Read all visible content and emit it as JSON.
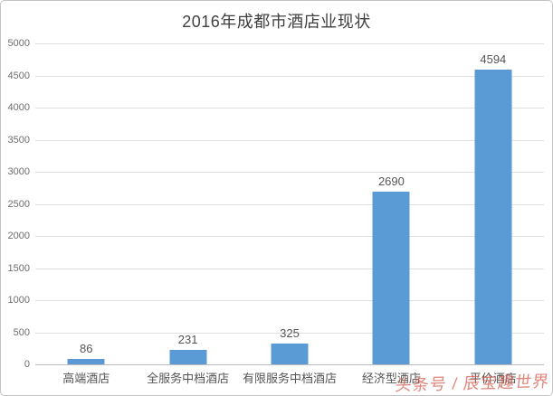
{
  "chart_data": {
    "type": "bar",
    "title": "2016年成都市酒店业现状",
    "categories": [
      "高端酒店",
      "全服务中档酒店",
      "有限服务中档酒店",
      "经济型酒店",
      "平价酒店"
    ],
    "values": [
      86,
      231,
      325,
      2690,
      4594
    ],
    "xlabel": "",
    "ylabel": "",
    "ylim": [
      0,
      5000
    ],
    "ytick_step": 500,
    "ytick_labels": [
      "0",
      "500",
      "1000",
      "1500",
      "2000",
      "2500",
      "3000",
      "3500",
      "4000",
      "4500",
      "5000"
    ],
    "grid": true,
    "legend": "none",
    "bar_color": "#5b9bd5",
    "value_labels_shown": true
  },
  "watermark": {
    "text": "头条号 / 辰宝趣世界",
    "color": "#d35d50"
  }
}
